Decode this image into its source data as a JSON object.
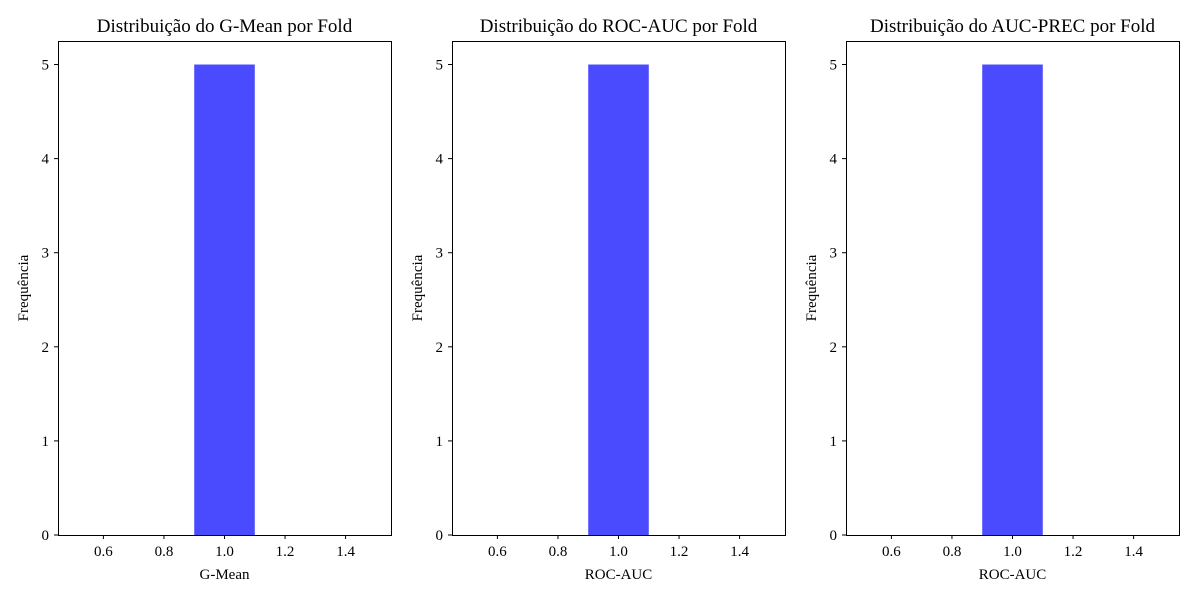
{
  "chart_data": [
    {
      "type": "bar",
      "title": "Distribuição do G-Mean por Fold",
      "xlabel": "G-Mean",
      "ylabel": "Frequência",
      "bins": [
        {
          "x0": 0.9,
          "x1": 1.1,
          "count": 5
        }
      ],
      "xlim": [
        0.45,
        1.55
      ],
      "ylim": [
        0,
        5.25
      ],
      "xticks": [
        0.6,
        0.8,
        1.0,
        1.2,
        1.4
      ],
      "xtick_labels": [
        "0.6",
        "0.8",
        "1.0",
        "1.2",
        "1.4"
      ],
      "yticks": [
        0,
        1,
        2,
        3,
        4,
        5
      ],
      "ytick_labels": [
        "0",
        "1",
        "2",
        "3",
        "4",
        "5"
      ],
      "bar_color": "#4a4aff",
      "grid": false
    },
    {
      "type": "bar",
      "title": "Distribuição do ROC-AUC por Fold",
      "xlabel": "ROC-AUC",
      "ylabel": "Frequência",
      "bins": [
        {
          "x0": 0.9,
          "x1": 1.1,
          "count": 5
        }
      ],
      "xlim": [
        0.45,
        1.55
      ],
      "ylim": [
        0,
        5.25
      ],
      "xticks": [
        0.6,
        0.8,
        1.0,
        1.2,
        1.4
      ],
      "xtick_labels": [
        "0.6",
        "0.8",
        "1.0",
        "1.2",
        "1.4"
      ],
      "yticks": [
        0,
        1,
        2,
        3,
        4,
        5
      ],
      "ytick_labels": [
        "0",
        "1",
        "2",
        "3",
        "4",
        "5"
      ],
      "bar_color": "#4a4aff",
      "grid": false
    },
    {
      "type": "bar",
      "title": "Distribuição do AUC-PREC por Fold",
      "xlabel": "ROC-AUC",
      "ylabel": "Frequência",
      "bins": [
        {
          "x0": 0.9,
          "x1": 1.1,
          "count": 5
        }
      ],
      "xlim": [
        0.45,
        1.55
      ],
      "ylim": [
        0,
        5.25
      ],
      "xticks": [
        0.6,
        0.8,
        1.0,
        1.2,
        1.4
      ],
      "xtick_labels": [
        "0.6",
        "0.8",
        "1.0",
        "1.2",
        "1.4"
      ],
      "yticks": [
        0,
        1,
        2,
        3,
        4,
        5
      ],
      "ytick_labels": [
        "0",
        "1",
        "2",
        "3",
        "4",
        "5"
      ],
      "bar_color": "#4a4aff",
      "grid": false
    }
  ]
}
